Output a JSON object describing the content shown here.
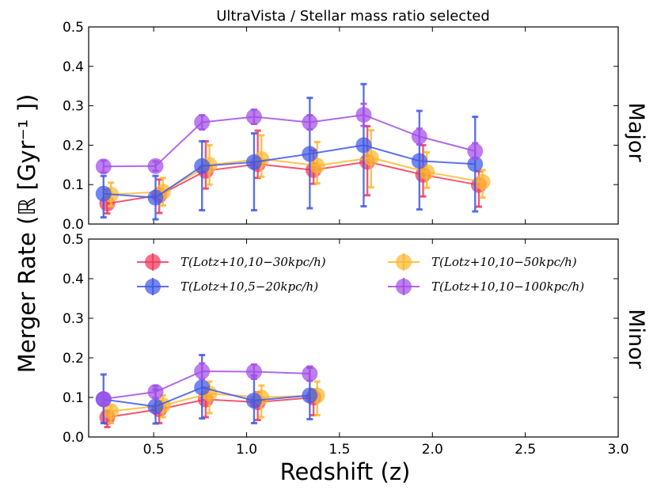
{
  "chart_data": {
    "type": "scatter",
    "title": "UltraVista / Stellar mass ratio selected",
    "xlabel": "Redshift (z)",
    "ylabel": "Merger Rate (ℝ [Gyr⁻¹ ])",
    "xlim": [
      0.15,
      3.0
    ],
    "ylim": [
      0.0,
      0.5
    ],
    "x_ticks": [
      "0.5",
      "1.0",
      "1.5",
      "2.0",
      "2.5",
      "3.0"
    ],
    "x_tick_values": [
      0.5,
      1.0,
      1.5,
      2.0,
      2.5,
      3.0
    ],
    "y_ticks": [
      "0.0",
      "0.1",
      "0.2",
      "0.3",
      "0.4",
      "0.5"
    ],
    "y_tick_values": [
      0.0,
      0.1,
      0.2,
      0.3,
      0.4,
      0.5
    ],
    "colors": {
      "red": "#f2385a",
      "blue": "#3f59e8",
      "orange": "#fdb92e",
      "purple": "#a44ee8"
    },
    "legend": [
      {
        "label": "T(Lotz+10,10−30kpc/h)",
        "color": "#f2385a"
      },
      {
        "label": "T(Lotz+10,10−50kpc/h)",
        "color": "#fdb92e"
      },
      {
        "label": "T(Lotz+10,5−20kpc/h)",
        "color": "#3f59e8"
      },
      {
        "label": "T(Lotz+10,10−100kpc/h)",
        "color": "#a44ee8"
      }
    ],
    "panels": [
      {
        "label": "Major",
        "series": [
          {
            "name": "T(Lotz+10,10−30kpc/h)",
            "color": "#f2385a",
            "x": [
              0.25,
              0.53,
              0.78,
              1.06,
              1.36,
              1.65,
              1.95,
              2.25
            ],
            "y": [
              0.052,
              0.073,
              0.135,
              0.152,
              0.137,
              0.158,
              0.125,
              0.099
            ],
            "err_low": [
              0.025,
              0.045,
              0.045,
              0.035,
              0.035,
              0.085,
              0.055,
              0.055
            ],
            "err_high": [
              0.035,
              0.04,
              0.075,
              0.085,
              0.05,
              0.09,
              0.075,
              0.035
            ]
          },
          {
            "name": "T(Lotz+10,10−50kpc/h)",
            "color": "#fdb92e",
            "x": [
              0.27,
              0.55,
              0.8,
              1.08,
              1.38,
              1.67,
              1.97,
              2.27
            ],
            "y": [
              0.075,
              0.082,
              0.15,
              0.165,
              0.148,
              0.168,
              0.132,
              0.107
            ],
            "err_low": [
              0.03,
              0.035,
              0.05,
              0.045,
              0.045,
              0.075,
              0.04,
              0.04
            ],
            "err_high": [
              0.03,
              0.035,
              0.05,
              0.06,
              0.06,
              0.07,
              0.05,
              0.03
            ]
          },
          {
            "name": "T(Lotz+10,5−20kpc/h)",
            "color": "#3f59e8",
            "x": [
              0.23,
              0.51,
              0.76,
              1.04,
              1.34,
              1.63,
              1.93,
              2.23
            ],
            "y": [
              0.077,
              0.067,
              0.147,
              0.157,
              0.178,
              0.2,
              0.16,
              0.152
            ],
            "err_low": [
              0.06,
              0.055,
              0.112,
              0.122,
              0.138,
              0.155,
              0.123,
              0.12
            ],
            "err_high": [
              0.045,
              0.055,
              0.063,
              0.073,
              0.142,
              0.155,
              0.127,
              0.12
            ]
          },
          {
            "name": "T(Lotz+10,10−100kpc/h)",
            "color": "#a44ee8",
            "x": [
              0.23,
              0.51,
              0.76,
              1.04,
              1.34,
              1.63,
              1.93,
              2.23
            ],
            "y": [
              0.146,
              0.147,
              0.258,
              0.272,
              0.258,
              0.277,
              0.222,
              0.185
            ],
            "err_low": [
              0.015,
              0.012,
              0.018,
              0.018,
              0.018,
              0.028,
              0.02,
              0.02
            ],
            "err_high": [
              0.015,
              0.012,
              0.018,
              0.018,
              0.018,
              0.028,
              0.02,
              0.02
            ]
          }
        ]
      },
      {
        "label": "Minor",
        "series": [
          {
            "name": "T(Lotz+10,10−30kpc/h)",
            "color": "#f2385a",
            "x": [
              0.25,
              0.53,
              0.78,
              1.06,
              1.36
            ],
            "y": [
              0.05,
              0.07,
              0.095,
              0.088,
              0.1
            ],
            "err_low": [
              0.025,
              0.035,
              0.045,
              0.045,
              0.045
            ],
            "err_high": [
              0.015,
              0.02,
              0.03,
              0.025,
              0.02
            ]
          },
          {
            "name": "T(Lotz+10,10−50kpc/h)",
            "color": "#fdb92e",
            "x": [
              0.27,
              0.55,
              0.8,
              1.08,
              1.38
            ],
            "y": [
              0.065,
              0.08,
              0.11,
              0.1,
              0.105
            ],
            "err_low": [
              0.03,
              0.03,
              0.05,
              0.05,
              0.05
            ],
            "err_high": [
              0.015,
              0.025,
              0.03,
              0.03,
              0.035
            ]
          },
          {
            "name": "T(Lotz+10,5−20kpc/h)",
            "color": "#3f59e8",
            "x": [
              0.23,
              0.51,
              0.76,
              1.04,
              1.34
            ],
            "y": [
              0.095,
              0.077,
              0.125,
              0.092,
              0.105
            ],
            "err_low": [
              0.06,
              0.043,
              0.078,
              0.057,
              0.06
            ],
            "err_high": [
              0.063,
              0.043,
              0.082,
              0.063,
              0.07
            ]
          },
          {
            "name": "T(Lotz+10,10−100kpc/h)",
            "color": "#a44ee8",
            "x": [
              0.23,
              0.51,
              0.76,
              1.04,
              1.34
            ],
            "y": [
              0.096,
              0.114,
              0.166,
              0.165,
              0.16
            ],
            "err_low": [
              0.015,
              0.015,
              0.02,
              0.018,
              0.018
            ],
            "err_high": [
              0.015,
              0.015,
              0.02,
              0.018,
              0.018
            ]
          }
        ]
      }
    ]
  }
}
